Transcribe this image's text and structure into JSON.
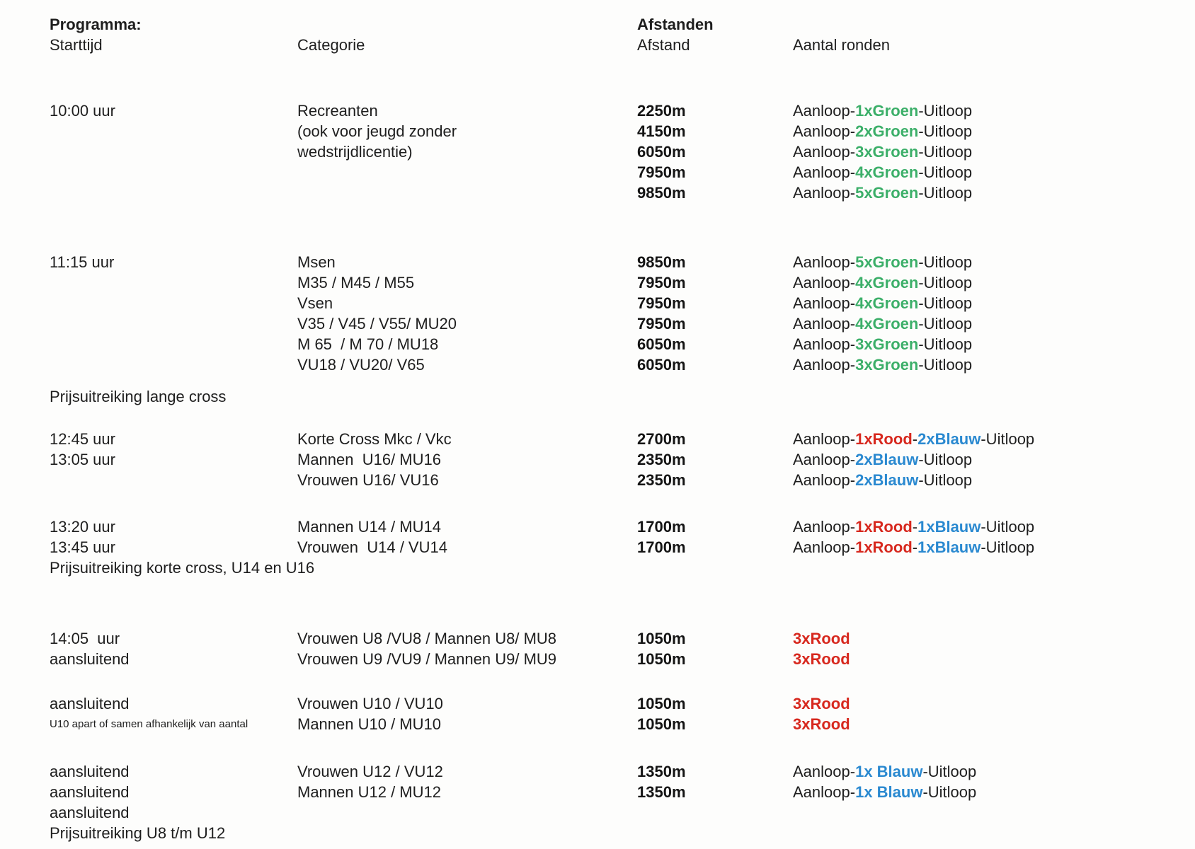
{
  "colors": {
    "black": "#1e1e1e",
    "green": "#3caf69",
    "red": "#d7281e",
    "blue": "#2a89d0"
  },
  "header": {
    "programma_label": "Programma:",
    "starttijd_label": "Starttijd",
    "categorie_label": "Categorie",
    "afstanden_label": "Afstanden",
    "afstand_label": "Afstand",
    "aantal_ronden_label": "Aantal ronden"
  },
  "blocks": [
    {
      "rows": [
        {
          "time": "10:00 uur",
          "category": "Recreanten",
          "distance": "2250m",
          "rounds": [
            {
              "text": "Aanloop-",
              "color": "black"
            },
            {
              "text": "1xGroen",
              "color": "green"
            },
            {
              "text": "-Uitloop",
              "color": "black"
            }
          ]
        },
        {
          "time": "",
          "category": "(ook voor jeugd zonder",
          "distance": "4150m",
          "rounds": [
            {
              "text": "Aanloop-",
              "color": "black"
            },
            {
              "text": "2xGroen",
              "color": "green"
            },
            {
              "text": "-Uitloop",
              "color": "black"
            }
          ]
        },
        {
          "time": "",
          "category": "wedstrijdlicentie)",
          "distance": "6050m",
          "rounds": [
            {
              "text": "Aanloop-",
              "color": "black"
            },
            {
              "text": "3xGroen",
              "color": "green"
            },
            {
              "text": "-Uitloop",
              "color": "black"
            }
          ]
        },
        {
          "time": "",
          "category": "",
          "distance": "7950m",
          "rounds": [
            {
              "text": "Aanloop-",
              "color": "black"
            },
            {
              "text": "4xGroen",
              "color": "green"
            },
            {
              "text": "-Uitloop",
              "color": "black"
            }
          ]
        },
        {
          "time": "",
          "category": "",
          "distance": "9850m",
          "rounds": [
            {
              "text": "Aanloop-",
              "color": "black"
            },
            {
              "text": "5xGroen",
              "color": "green"
            },
            {
              "text": "-Uitloop",
              "color": "black"
            }
          ]
        }
      ]
    },
    {
      "rows": [
        {
          "time": "11:15 uur",
          "category": "Msen",
          "distance": "9850m",
          "rounds": [
            {
              "text": "Aanloop-",
              "color": "black"
            },
            {
              "text": "5xGroen",
              "color": "green"
            },
            {
              "text": "-Uitloop",
              "color": "black"
            }
          ]
        },
        {
          "time": "",
          "category": "M35 / M45 / M55",
          "distance": "7950m",
          "rounds": [
            {
              "text": "Aanloop-",
              "color": "black"
            },
            {
              "text": "4xGroen",
              "color": "green"
            },
            {
              "text": "-Uitloop",
              "color": "black"
            }
          ]
        },
        {
          "time": "",
          "category": "Vsen",
          "distance": "7950m",
          "rounds": [
            {
              "text": "Aanloop-",
              "color": "black"
            },
            {
              "text": "4xGroen",
              "color": "green"
            },
            {
              "text": "-Uitloop",
              "color": "black"
            }
          ]
        },
        {
          "time": "",
          "category": "V35 / V45 / V55/ MU20",
          "distance": "7950m",
          "rounds": [
            {
              "text": "Aanloop-",
              "color": "black"
            },
            {
              "text": "4xGroen",
              "color": "green"
            },
            {
              "text": "-Uitloop",
              "color": "black"
            }
          ]
        },
        {
          "time": "",
          "category": "M 65  / M 70 / MU18",
          "distance": "6050m",
          "rounds": [
            {
              "text": "Aanloop-",
              "color": "black"
            },
            {
              "text": "3xGroen",
              "color": "green"
            },
            {
              "text": "-Uitloop",
              "color": "black"
            }
          ]
        },
        {
          "time": "",
          "category": "VU18 / VU20/ V65",
          "distance": "6050m",
          "rounds": [
            {
              "text": "Aanloop-",
              "color": "black"
            },
            {
              "text": "3xGroen",
              "color": "green"
            },
            {
              "text": "-Uitloop",
              "color": "black"
            }
          ]
        }
      ],
      "footer": "Prijsuitreiking lange cross"
    },
    {
      "rows": [
        {
          "time": "12:45 uur",
          "category": "Korte Cross Mkc / Vkc",
          "distance": "2700m",
          "rounds": [
            {
              "text": "Aanloop-",
              "color": "black"
            },
            {
              "text": "1xRood",
              "color": "red"
            },
            {
              "text": "-",
              "color": "black"
            },
            {
              "text": "2xBlauw",
              "color": "blue"
            },
            {
              "text": "-Uitloop",
              "color": "black"
            }
          ]
        },
        {
          "time": "13:05 uur",
          "category": "Mannen  U16/ MU16",
          "distance": "2350m",
          "rounds": [
            {
              "text": "Aanloop-",
              "color": "black"
            },
            {
              "text": "2xBlauw",
              "color": "blue"
            },
            {
              "text": "-Uitloop",
              "color": "black"
            }
          ]
        },
        {
          "time": "",
          "category": "Vrouwen U16/ VU16",
          "distance": "2350m",
          "rounds": [
            {
              "text": "Aanloop-",
              "color": "black"
            },
            {
              "text": "2xBlauw",
              "color": "blue"
            },
            {
              "text": "-Uitloop",
              "color": "black"
            }
          ]
        }
      ]
    },
    {
      "rows": [
        {
          "time": "13:20 uur",
          "category": "Mannen U14 / MU14",
          "distance": "1700m",
          "rounds": [
            {
              "text": "Aanloop-",
              "color": "black"
            },
            {
              "text": "1xRood",
              "color": "red"
            },
            {
              "text": "-",
              "color": "black"
            },
            {
              "text": "1xBlauw",
              "color": "blue"
            },
            {
              "text": "-Uitloop",
              "color": "black"
            }
          ]
        },
        {
          "time": "13:45 uur",
          "category": "Vrouwen  U14 / VU14",
          "distance": "1700m",
          "rounds": [
            {
              "text": "Aanloop-",
              "color": "black"
            },
            {
              "text": "1xRood",
              "color": "red"
            },
            {
              "text": "-",
              "color": "black"
            },
            {
              "text": "1xBlauw",
              "color": "blue"
            },
            {
              "text": "-Uitloop",
              "color": "black"
            }
          ]
        }
      ],
      "footer": "Prijsuitreiking korte cross, U14 en U16"
    },
    {
      "rows": [
        {
          "time": "14:05  uur",
          "category": "Vrouwen U8 /VU8 / Mannen U8/ MU8",
          "distance": "1050m",
          "rounds": [
            {
              "text": "3xRood",
              "color": "red"
            }
          ]
        },
        {
          "time": "aansluitend",
          "category": "Vrouwen U9 /VU9 / Mannen U9/ MU9",
          "distance": "1050m",
          "rounds": [
            {
              "text": "3xRood",
              "color": "red"
            }
          ]
        }
      ]
    },
    {
      "rows": [
        {
          "time": "aansluitend",
          "category": "Vrouwen U10 / VU10",
          "distance": "1050m",
          "rounds": [
            {
              "text": "3xRood",
              "color": "red"
            }
          ]
        },
        {
          "time": "U10 apart of samen afhankelijk van aantal",
          "time_small": true,
          "category": "Mannen U10 / MU10",
          "distance": "1050m",
          "rounds": [
            {
              "text": "3xRood",
              "color": "red"
            }
          ]
        }
      ]
    },
    {
      "rows": [
        {
          "time": "aansluitend",
          "category": "Vrouwen U12 / VU12",
          "distance": "1350m",
          "rounds": [
            {
              "text": "Aanloop-",
              "color": "black"
            },
            {
              "text": "1x Blauw",
              "color": "blue"
            },
            {
              "text": "-Uitloop",
              "color": "black"
            }
          ]
        },
        {
          "time": "aansluitend",
          "category": "Mannen U12 / MU12",
          "distance": "1350m",
          "rounds": [
            {
              "text": "Aanloop-",
              "color": "black"
            },
            {
              "text": "1x Blauw",
              "color": "blue"
            },
            {
              "text": "-Uitloop",
              "color": "black"
            }
          ]
        },
        {
          "time": "aansluitend",
          "category": "",
          "distance": "",
          "rounds": []
        }
      ],
      "footer": "Prijsuitreiking U8 t/m U12"
    }
  ]
}
